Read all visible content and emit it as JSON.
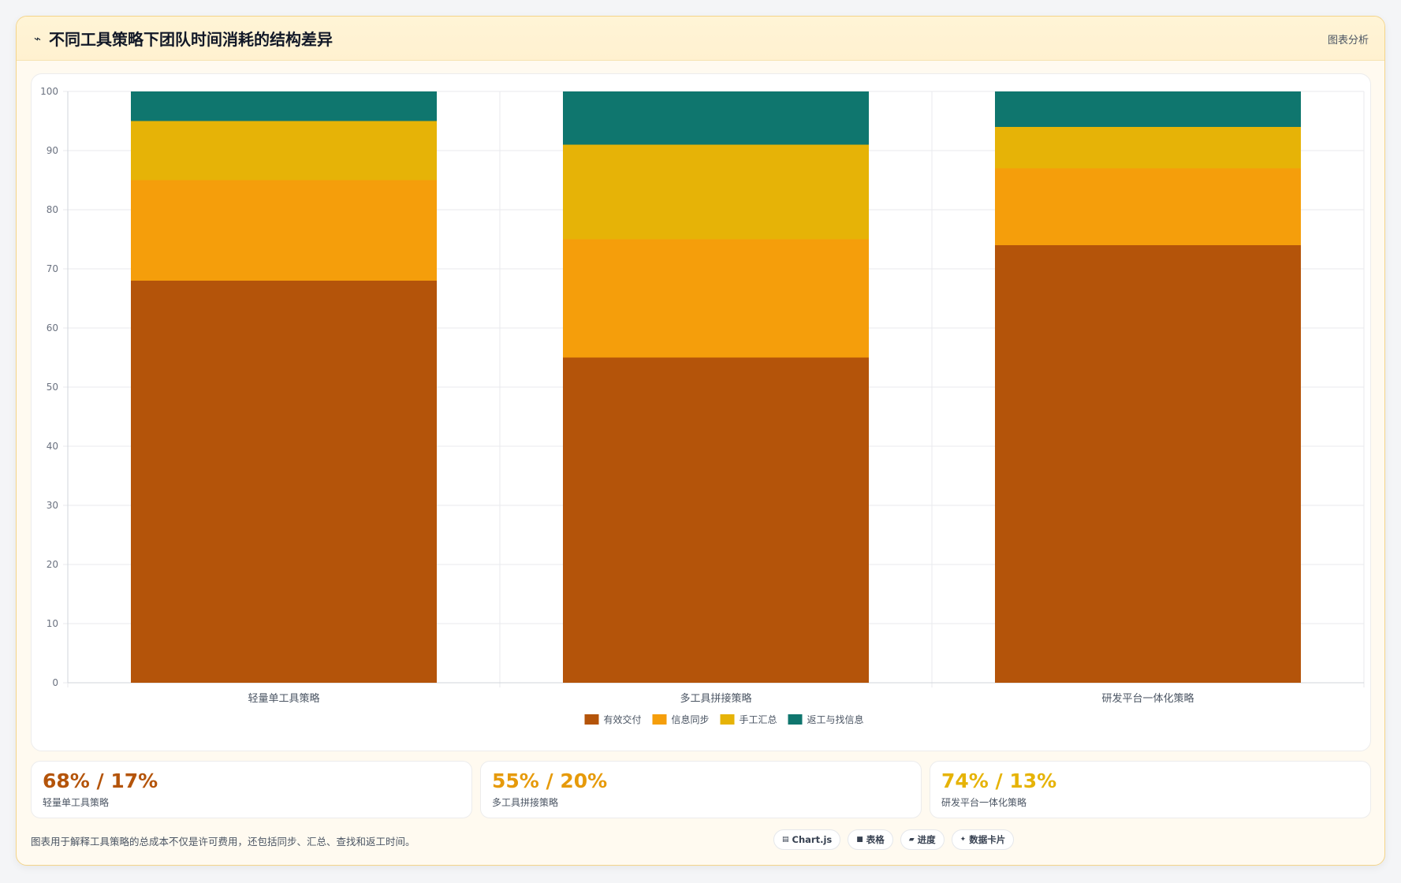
{
  "header": {
    "icon": "trend-icon",
    "title": "不同工具策略下团队时间消耗的结构差异",
    "tag": "图表分析"
  },
  "chart_data": {
    "type": "bar",
    "stacked": true,
    "categories": [
      "轻量单工具策略",
      "多工具拼接策略",
      "研发平台一体化策略"
    ],
    "series": [
      {
        "name": "有效交付",
        "values": [
          68,
          55,
          74
        ],
        "color": "#b4540a"
      },
      {
        "name": "信息同步",
        "values": [
          17,
          20,
          13
        ],
        "color": "#f59e0b"
      },
      {
        "name": "手工汇总",
        "values": [
          10,
          16,
          7
        ],
        "color": "#e6b307"
      },
      {
        "name": "返工与找信息",
        "values": [
          5,
          9,
          6
        ],
        "color": "#0f766e"
      }
    ],
    "ylim": [
      0,
      100
    ],
    "yticks": [
      0,
      10,
      20,
      30,
      40,
      50,
      60,
      70,
      80,
      90,
      100
    ],
    "grid": true,
    "legend": "bottom"
  },
  "stats": [
    {
      "value": "68% / 17%",
      "label": "轻量单工具策略",
      "color": "#b4540a"
    },
    {
      "value": "55% / 20%",
      "label": "多工具拼接策略",
      "color": "#e69a0a"
    },
    {
      "value": "74% / 13%",
      "label": "研发平台一体化策略",
      "color": "#e6b307"
    }
  ],
  "footer": {
    "note": "图表用于解释工具策略的总成本不仅是许可费用，还包括同步、汇总、查找和返工时间。",
    "chips": [
      {
        "icon": "chart-icon",
        "glyph": "▤",
        "label": "Chart.js"
      },
      {
        "icon": "table-icon",
        "glyph": "■",
        "label": "表格"
      },
      {
        "icon": "progress-icon",
        "glyph": "▰",
        "label": "进度"
      },
      {
        "icon": "sparkle-icon",
        "glyph": "✦",
        "label": "数据卡片"
      }
    ]
  }
}
